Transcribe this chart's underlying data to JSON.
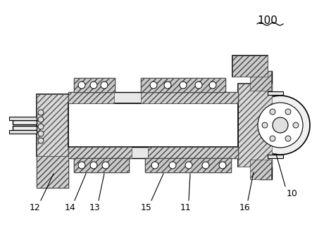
{
  "fig_width": 4.43,
  "fig_height": 3.57,
  "dpi": 100,
  "bg_color": "#ffffff",
  "line_color": "#000000",
  "label_100": "100",
  "label_10": "10",
  "label_12": "12",
  "label_14": "14",
  "label_13": "13",
  "label_15": "15",
  "label_11": "11",
  "label_16": "16",
  "font_size_labels": 9,
  "font_size_100": 11
}
